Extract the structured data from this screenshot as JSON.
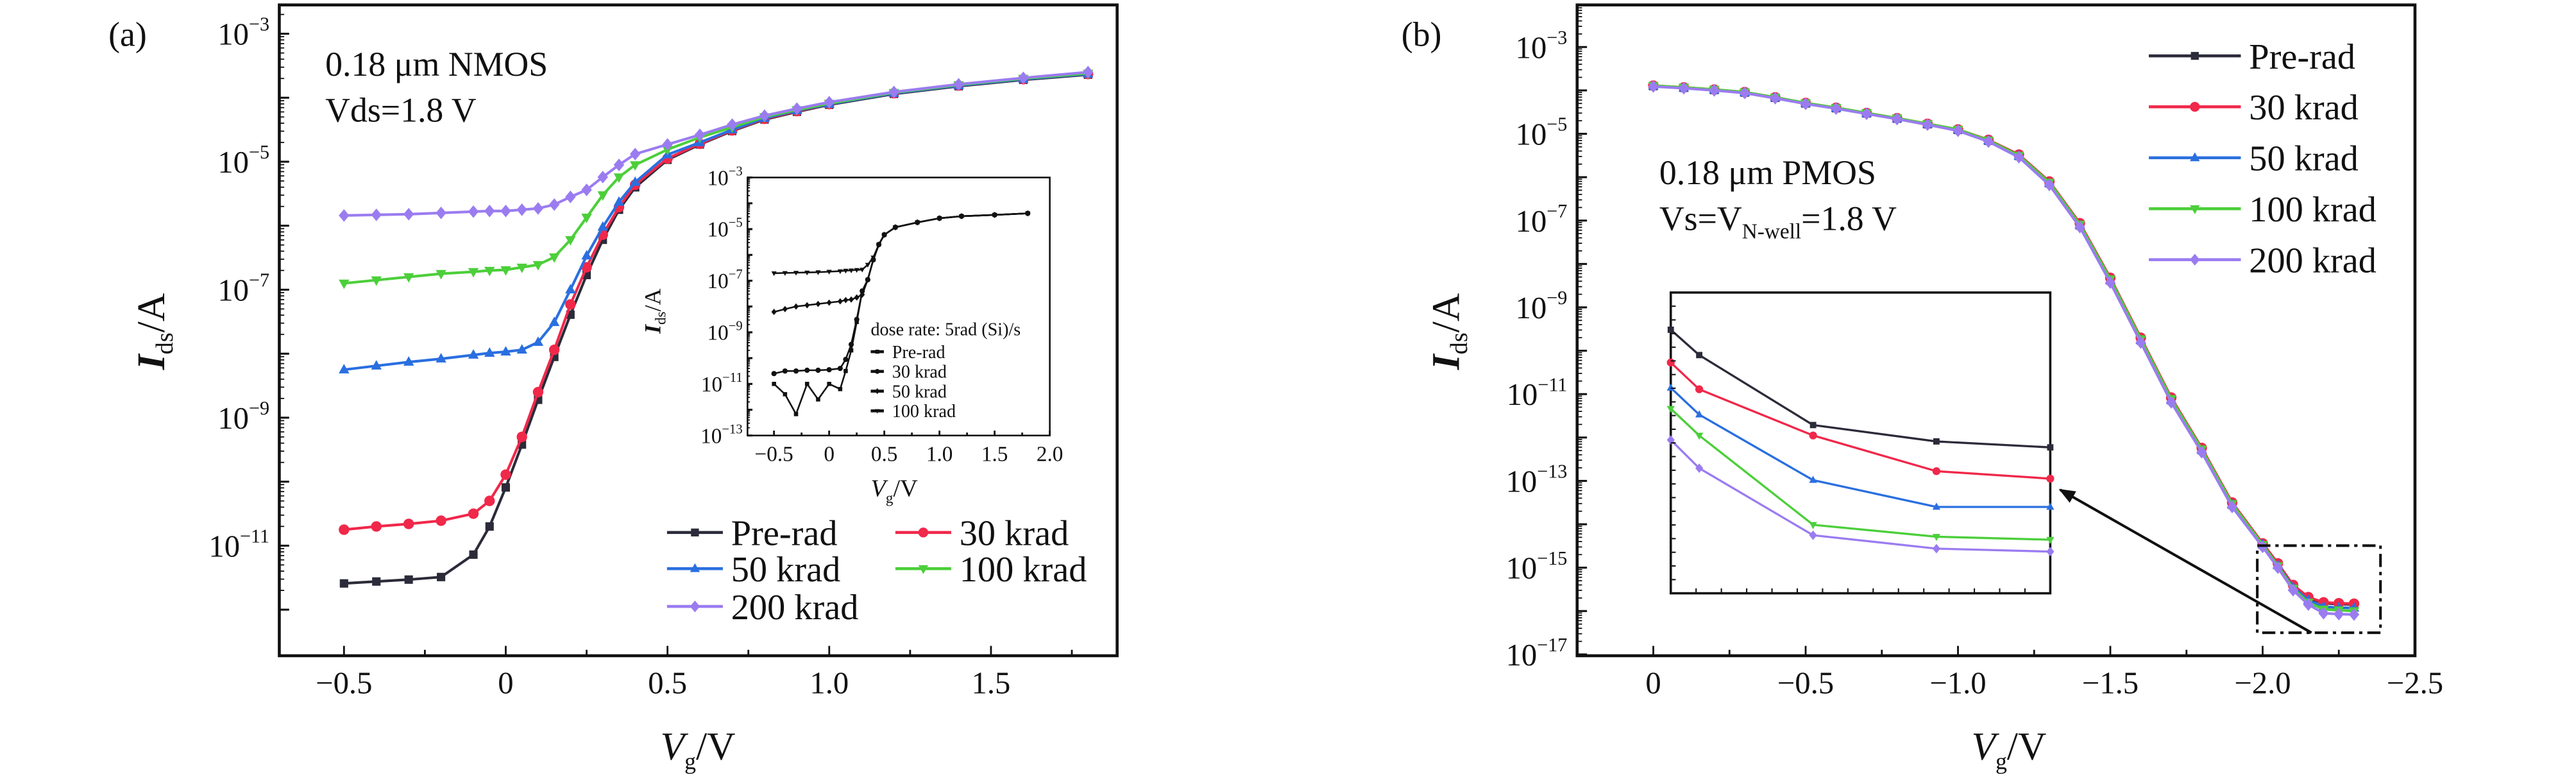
{
  "colors": {
    "pre": "#2b2b3a",
    "k30": "#f0284a",
    "k50": "#2a6fe0",
    "k100": "#4ccf3a",
    "k200": "#9b7cf0",
    "axis": "#111111"
  },
  "chart_data": [
    {
      "id": "a",
      "type": "line",
      "panel_label": "(a)",
      "annotation": {
        "line1": "0.18 μm NMOS",
        "line2": "Vds=1.8 V"
      },
      "xlabel": {
        "main": "V",
        "sub": "g",
        "unit": "/V"
      },
      "ylabel": {
        "main": "I",
        "sub": "ds",
        "unit": "/A"
      },
      "xlim": [
        -0.7,
        1.89
      ],
      "ylim_log10": [
        -12.72,
        -2.55
      ],
      "yscale": "log",
      "xticks": [
        -0.5,
        0,
        0.5,
        1.0,
        1.5
      ],
      "xtick_labels": [
        "−0.5",
        "0",
        "0.5",
        "1.0",
        "1.5"
      ],
      "yticks_log10": [
        -3,
        -5,
        -7,
        -9,
        -11
      ],
      "ytick_labels": [
        "10",
        "10",
        "10",
        "10",
        "10"
      ],
      "ytick_exponents": [
        "−3",
        "−5",
        "−7",
        "−9",
        "−11"
      ],
      "legend_position": "bottom-right",
      "x": [
        -0.5,
        -0.4,
        -0.3,
        -0.2,
        -0.1,
        -0.05,
        0,
        0.05,
        0.1,
        0.15,
        0.2,
        0.25,
        0.3,
        0.35,
        0.4,
        0.5,
        0.6,
        0.7,
        0.8,
        0.9,
        1.0,
        1.2,
        1.4,
        1.6,
        1.8
      ],
      "series": [
        {
          "name": "Pre-rad",
          "color": "#2b2b3a",
          "marker": "square",
          "log10_values": [
            -11.59,
            -11.56,
            -11.53,
            -11.49,
            -11.14,
            -10.7,
            -10.09,
            -9.42,
            -8.72,
            -8.05,
            -7.39,
            -6.77,
            -6.22,
            -5.75,
            -5.4,
            -4.97,
            -4.73,
            -4.52,
            -4.34,
            -4.22,
            -4.11,
            -3.94,
            -3.82,
            -3.72,
            -3.64
          ]
        },
        {
          "name": "30 krad",
          "color": "#f0284a",
          "marker": "circle",
          "log10_values": [
            -10.75,
            -10.7,
            -10.66,
            -10.61,
            -10.5,
            -10.3,
            -9.89,
            -9.3,
            -8.6,
            -7.94,
            -7.23,
            -6.65,
            -6.14,
            -5.71,
            -5.36,
            -4.95,
            -4.72,
            -4.51,
            -4.33,
            -4.21,
            -4.1,
            -3.93,
            -3.81,
            -3.71,
            -3.63
          ]
        },
        {
          "name": "50 krad",
          "color": "#2a6fe0",
          "marker": "triangle-up",
          "log10_values": [
            -8.25,
            -8.19,
            -8.13,
            -8.08,
            -8.02,
            -7.99,
            -7.97,
            -7.94,
            -7.82,
            -7.51,
            -7.0,
            -6.47,
            -6.02,
            -5.63,
            -5.32,
            -4.89,
            -4.7,
            -4.5,
            -4.32,
            -4.2,
            -4.1,
            -3.93,
            -3.81,
            -3.71,
            -3.63
          ]
        },
        {
          "name": "100 krad",
          "color": "#4ccf3a",
          "marker": "triangle-down",
          "log10_values": [
            -6.9,
            -6.85,
            -6.8,
            -6.75,
            -6.72,
            -6.7,
            -6.69,
            -6.65,
            -6.61,
            -6.49,
            -6.22,
            -5.87,
            -5.52,
            -5.24,
            -5.05,
            -4.81,
            -4.62,
            -4.46,
            -4.3,
            -4.19,
            -4.09,
            -3.92,
            -3.8,
            -3.7,
            -3.62
          ]
        },
        {
          "name": "200 krad",
          "color": "#9b7cf0",
          "marker": "diamond",
          "log10_values": [
            -5.84,
            -5.83,
            -5.82,
            -5.8,
            -5.78,
            -5.77,
            -5.77,
            -5.75,
            -5.73,
            -5.67,
            -5.55,
            -5.44,
            -5.24,
            -5.05,
            -4.88,
            -4.73,
            -4.58,
            -4.42,
            -4.28,
            -4.17,
            -4.07,
            -3.91,
            -3.79,
            -3.69,
            -3.6
          ]
        }
      ],
      "inset": {
        "type": "line",
        "note": "dose rate: 5rad (Si)/s",
        "xlabel": {
          "main": "V",
          "sub": "g",
          "unit": "/V"
        },
        "ylabel": {
          "main": "I",
          "sub": "ds",
          "unit": "/A"
        },
        "xlim": [
          -0.74,
          2.0
        ],
        "ylim_log10": [
          -13,
          -3
        ],
        "xticks": [
          -0.5,
          0,
          0.5,
          1.0,
          1.5,
          2.0
        ],
        "xtick_labels": [
          "−0.5",
          "0",
          "0.5",
          "1.0",
          "1.5",
          "2.0"
        ],
        "yticks_log10": [
          -3,
          -5,
          -7,
          -9,
          -11,
          -13
        ],
        "ytick_labels": [
          "10",
          "10",
          "10",
          "10",
          "10",
          "10"
        ],
        "ytick_exponents": [
          "−3",
          "−5",
          "−7",
          "−9",
          "−11",
          "−13"
        ],
        "x": [
          -0.5,
          -0.4,
          -0.3,
          -0.2,
          -0.1,
          0,
          0.1,
          0.15,
          0.2,
          0.25,
          0.3,
          0.35,
          0.4,
          0.45,
          0.5,
          0.6,
          0.8,
          1.0,
          1.2,
          1.5,
          1.8
        ],
        "series": [
          {
            "name": "Pre-rad",
            "color": "#111111",
            "marker": "square",
            "log10_values": [
              -11.0,
              -11.4,
              -12.17,
              -11.0,
              -11.6,
              -11.0,
              -11.2,
              -10.5,
              -9.7,
              -8.6,
              -7.4,
              -6.96,
              -6.19,
              -5.6,
              -5.22,
              -4.93,
              -4.74,
              -4.58,
              -4.5,
              -4.45,
              -4.39
            ]
          },
          {
            "name": "30 krad",
            "color": "#111111",
            "marker": "circle",
            "log10_values": [
              -10.6,
              -10.5,
              -10.5,
              -10.47,
              -10.47,
              -10.45,
              -10.4,
              -10.05,
              -9.47,
              -8.5,
              -7.4,
              -6.96,
              -6.19,
              -5.6,
              -5.22,
              -4.93,
              -4.74,
              -4.58,
              -4.5,
              -4.45,
              -4.39
            ]
          },
          {
            "name": "50 krad",
            "color": "#111111",
            "marker": "diamond",
            "log10_values": [
              -8.21,
              -8.1,
              -8.0,
              -7.95,
              -7.9,
              -7.85,
              -7.8,
              -7.75,
              -7.73,
              -7.65,
              -7.54,
              -6.96,
              -6.19,
              -5.6,
              -5.22,
              -4.93,
              -4.74,
              -4.58,
              -4.5,
              -4.45,
              -4.39
            ]
          },
          {
            "name": "100 krad",
            "color": "#111111",
            "marker": "triangle-down",
            "log10_values": [
              -6.71,
              -6.7,
              -6.69,
              -6.68,
              -6.67,
              -6.65,
              -6.63,
              -6.61,
              -6.6,
              -6.58,
              -6.57,
              -6.38,
              -6.1,
              -5.6,
              -5.22,
              -4.93,
              -4.74,
              -4.58,
              -4.5,
              -4.45,
              -4.39
            ]
          }
        ]
      }
    },
    {
      "id": "b",
      "type": "line",
      "panel_label": "(b)",
      "annotation": {
        "line1": "0.18 μm PMOS",
        "line2_a": "Vs=V",
        "line2_sub": "N-well",
        "line2_b": "=1.8 V"
      },
      "xlabel": {
        "main": "V",
        "sub": "g",
        "unit": "/V"
      },
      "ylabel": {
        "main": "I",
        "sub": "ds",
        "unit": "/A"
      },
      "xlim": [
        0.25,
        -2.5
      ],
      "ylim_log10": [
        -17.03,
        -2.03
      ],
      "yscale": "log",
      "xticks": [
        0,
        -0.5,
        -1.0,
        -1.5,
        -2.0,
        -2.5
      ],
      "xtick_labels": [
        "0",
        "−0.5",
        "−1.0",
        "−1.5",
        "−2.0",
        "−2.5"
      ],
      "yticks_log10": [
        -3,
        -5,
        -7,
        -9,
        -11,
        -13,
        -15,
        -17
      ],
      "ytick_labels": [
        "10",
        "10",
        "10",
        "10",
        "10",
        "10",
        "10",
        "10"
      ],
      "ytick_exponents": [
        "−3",
        "−5",
        "−7",
        "−9",
        "−11",
        "−13",
        "−15",
        "−17"
      ],
      "legend_position": "top-right",
      "x": [
        0,
        -0.1,
        -0.2,
        -0.3,
        -0.4,
        -0.5,
        -0.6,
        -0.7,
        -0.8,
        -0.9,
        -1.0,
        -1.1,
        -1.2,
        -1.3,
        -1.4,
        -1.5,
        -1.6,
        -1.7,
        -1.8,
        -1.9,
        -2.0,
        -2.05,
        -2.1,
        -2.15,
        -2.2,
        -2.25,
        -2.3
      ],
      "series": [
        {
          "name": "Pre-rad",
          "color": "#2b2b3a",
          "marker": "square",
          "log10_values": [
            -3.9,
            -3.94,
            -3.99,
            -4.05,
            -4.17,
            -4.3,
            -4.41,
            -4.53,
            -4.65,
            -4.78,
            -4.91,
            -5.16,
            -5.51,
            -6.14,
            -7.11,
            -8.38,
            -9.76,
            -11.14,
            -12.29,
            -13.55,
            -14.47,
            -14.93,
            -15.42,
            -15.7,
            -15.82,
            -15.84,
            -15.85
          ]
        },
        {
          "name": "30 krad",
          "color": "#f0284a",
          "marker": "circle",
          "log10_values": [
            -3.89,
            -3.93,
            -3.98,
            -4.04,
            -4.16,
            -4.29,
            -4.4,
            -4.52,
            -4.64,
            -4.77,
            -4.9,
            -5.14,
            -5.48,
            -6.1,
            -7.06,
            -8.32,
            -9.7,
            -11.08,
            -12.24,
            -13.5,
            -14.44,
            -14.9,
            -15.4,
            -15.68,
            -15.8,
            -15.82,
            -15.83
          ]
        },
        {
          "name": "50 krad",
          "color": "#2a6fe0",
          "marker": "triangle-up",
          "log10_values": [
            -3.9,
            -3.94,
            -3.99,
            -4.05,
            -4.17,
            -4.3,
            -4.41,
            -4.53,
            -4.65,
            -4.78,
            -4.91,
            -5.16,
            -5.51,
            -6.14,
            -7.11,
            -8.38,
            -9.76,
            -11.14,
            -12.29,
            -13.55,
            -14.47,
            -14.95,
            -15.45,
            -15.75,
            -15.9,
            -15.92,
            -15.93
          ]
        },
        {
          "name": "100 krad",
          "color": "#4ccf3a",
          "marker": "triangle-down",
          "log10_values": [
            -3.89,
            -3.93,
            -3.98,
            -4.04,
            -4.16,
            -4.29,
            -4.4,
            -4.52,
            -4.64,
            -4.77,
            -4.9,
            -5.15,
            -5.5,
            -6.12,
            -7.09,
            -8.35,
            -9.73,
            -11.11,
            -12.27,
            -13.53,
            -14.47,
            -14.96,
            -15.48,
            -15.8,
            -15.96,
            -15.98,
            -16.0
          ]
        },
        {
          "name": "200 krad",
          "color": "#9b7cf0",
          "marker": "diamond",
          "log10_values": [
            -3.91,
            -3.95,
            -4.0,
            -4.06,
            -4.18,
            -4.31,
            -4.42,
            -4.54,
            -4.66,
            -4.79,
            -4.93,
            -5.18,
            -5.54,
            -6.18,
            -7.15,
            -8.43,
            -9.81,
            -11.19,
            -12.34,
            -13.6,
            -14.52,
            -15.0,
            -15.52,
            -15.85,
            -16.05,
            -16.07,
            -16.08
          ]
        }
      ],
      "zoom_box_x": [
        -2.0,
        -2.4
      ],
      "zoom_box_log10": [
        -16.51,
        -14.49
      ],
      "inset": {
        "type": "line",
        "xlim": [
          -2.0,
          -2.4
        ],
        "ylim_log10": [
          -16.51,
          -14.49
        ],
        "x": [
          -2.0,
          -2.03,
          -2.15,
          -2.28,
          -2.4
        ],
        "series": [
          {
            "name": "Pre-rad",
            "color": "#2b2b3a",
            "marker": "square",
            "log10_values": [
              -14.74,
              -14.91,
              -15.38,
              -15.49,
              -15.53
            ]
          },
          {
            "name": "30 krad",
            "color": "#f0284a",
            "marker": "circle",
            "log10_values": [
              -14.96,
              -15.14,
              -15.45,
              -15.69,
              -15.74
            ]
          },
          {
            "name": "50 krad",
            "color": "#2a6fe0",
            "marker": "triangle-up",
            "log10_values": [
              -15.13,
              -15.31,
              -15.75,
              -15.93,
              -15.93
            ]
          },
          {
            "name": "100 krad",
            "color": "#4ccf3a",
            "marker": "triangle-down",
            "log10_values": [
              -15.27,
              -15.45,
              -16.05,
              -16.13,
              -16.15
            ]
          },
          {
            "name": "200 krad",
            "color": "#9b7cf0",
            "marker": "diamond",
            "log10_values": [
              -15.48,
              -15.67,
              -16.12,
              -16.21,
              -16.23
            ]
          }
        ]
      }
    }
  ]
}
